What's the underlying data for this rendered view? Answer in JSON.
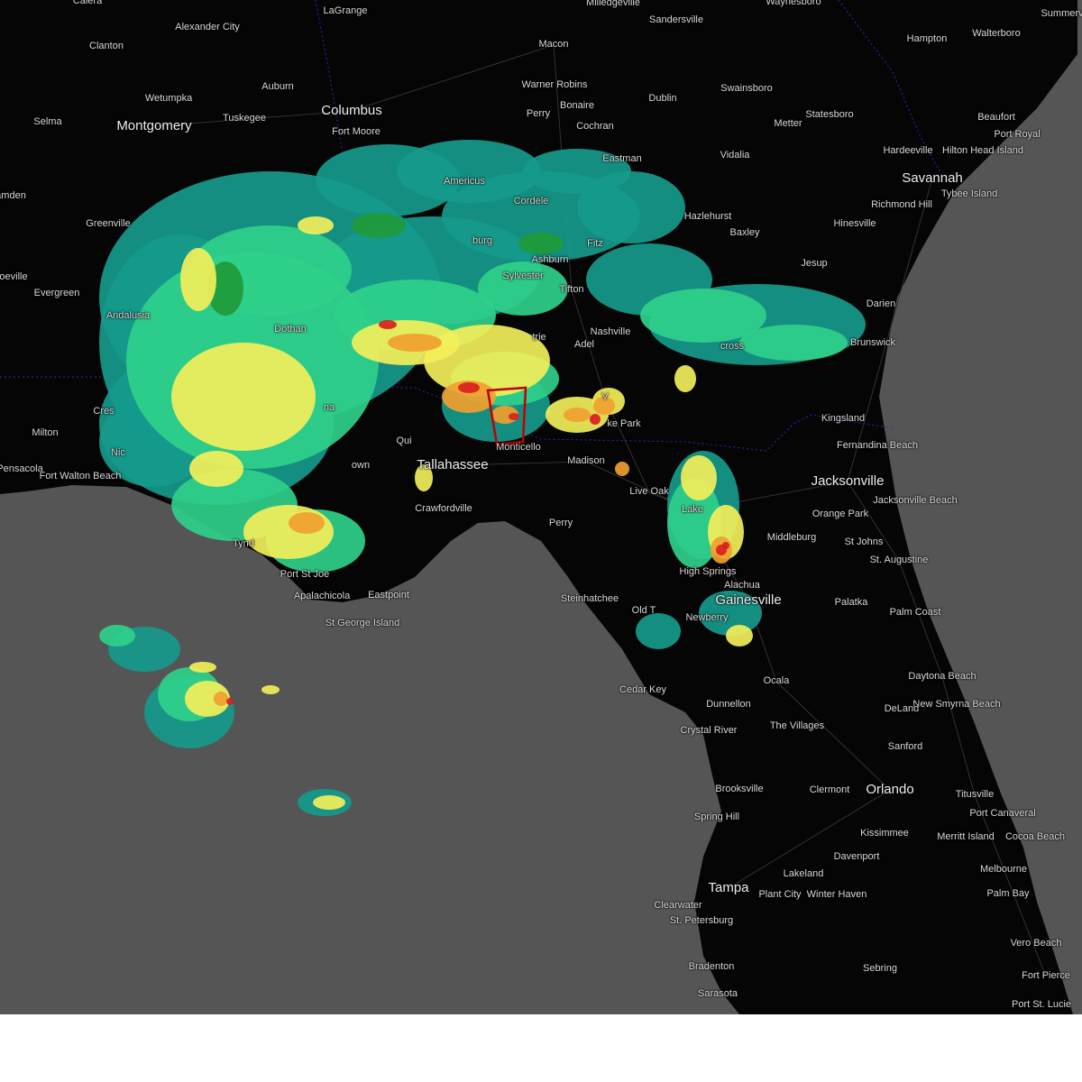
{
  "map": {
    "type": "weather radar",
    "colors": {
      "land": "#050505",
      "water": "#555555",
      "radar_light": "#159a8c",
      "radar_green": "#2fd08a",
      "radar_darkgreen": "#1f9a3a",
      "radar_yellow": "#f2ef5a",
      "radar_orange": "#f0a030",
      "radar_red": "#d82020",
      "warning_polygon": "#c00000",
      "state_border": "#2a2acc"
    }
  },
  "cities": [
    {
      "name": "Calera"
    },
    {
      "name": "LaGrange"
    },
    {
      "name": "Milledgeville"
    },
    {
      "name": "Waynesboro"
    },
    {
      "name": "Summerv"
    },
    {
      "name": "Sandersville"
    },
    {
      "name": "Alexander City"
    },
    {
      "name": "Hampton"
    },
    {
      "name": "Walterboro"
    },
    {
      "name": "Clanton"
    },
    {
      "name": "Macon"
    },
    {
      "name": "Wetumpka"
    },
    {
      "name": "Auburn"
    },
    {
      "name": "Warner Robins"
    },
    {
      "name": "Bonaire"
    },
    {
      "name": "Perry"
    },
    {
      "name": "Dublin"
    },
    {
      "name": "Swainsboro"
    },
    {
      "name": "Beaufort"
    },
    {
      "name": "Port Royal"
    },
    {
      "name": "Selma"
    },
    {
      "name": "Montgomery"
    },
    {
      "name": "Tuskegee"
    },
    {
      "name": "Columbus"
    },
    {
      "name": "Fort Moore"
    },
    {
      "name": "Cochran"
    },
    {
      "name": "Metter"
    },
    {
      "name": "Statesboro"
    },
    {
      "name": "Hardeeville"
    },
    {
      "name": "Hilton Head Island"
    },
    {
      "name": "Eastman"
    },
    {
      "name": "Vidalia"
    },
    {
      "name": "Savannah"
    },
    {
      "name": "Americus"
    },
    {
      "name": "Cordele"
    },
    {
      "name": "Richmond Hill"
    },
    {
      "name": "Tybee Island"
    },
    {
      "name": "amden"
    },
    {
      "name": "Greenville"
    },
    {
      "name": "Hazlehurst"
    },
    {
      "name": "Baxley"
    },
    {
      "name": "Hinesville"
    },
    {
      "name": "Fitz"
    },
    {
      "name": "burg"
    },
    {
      "name": "Ashburn"
    },
    {
      "name": "Jesup"
    },
    {
      "name": "oeville"
    },
    {
      "name": "Sylvester"
    },
    {
      "name": "Evergreen"
    },
    {
      "name": "Tifton"
    },
    {
      "name": "Darien"
    },
    {
      "name": "Andalusia"
    },
    {
      "name": "Dothan"
    },
    {
      "name": "trie"
    },
    {
      "name": "Nashville"
    },
    {
      "name": "Adel"
    },
    {
      "name": "cross"
    },
    {
      "name": "Brunswick"
    },
    {
      "name": "V"
    },
    {
      "name": "ke Park"
    },
    {
      "name": "Kingsland"
    },
    {
      "name": "Cres"
    },
    {
      "name": "Milton"
    },
    {
      "name": "Monticello"
    },
    {
      "name": "Fernandina Beach"
    },
    {
      "name": "Nic"
    },
    {
      "name": "Pensacola"
    },
    {
      "name": "Fort Walton Beach"
    },
    {
      "name": "Tallahassee"
    },
    {
      "name": "Madison"
    },
    {
      "name": "Qui"
    },
    {
      "name": "Live Oak"
    },
    {
      "name": "Jacksonville"
    },
    {
      "name": "Jacksonville Beach"
    },
    {
      "name": "Crawfordville"
    },
    {
      "name": "Lake"
    },
    {
      "name": "Orange Park"
    },
    {
      "name": "Perry"
    },
    {
      "name": "Middleburg"
    },
    {
      "name": "St Johns"
    },
    {
      "name": "Tynd"
    },
    {
      "name": "St. Augustine"
    },
    {
      "name": "Port St Joe"
    },
    {
      "name": "High Springs"
    },
    {
      "name": "Alachua"
    },
    {
      "name": "Apalachicola"
    },
    {
      "name": "Eastpoint"
    },
    {
      "name": "Gainesville"
    },
    {
      "name": "Steinhatchee"
    },
    {
      "name": "Palatka"
    },
    {
      "name": "Old T"
    },
    {
      "name": "Newberry"
    },
    {
      "name": "Palm Coast"
    },
    {
      "name": "St George Island"
    },
    {
      "name": "Daytona Beach"
    },
    {
      "name": "Ocala"
    },
    {
      "name": "Cedar Key"
    },
    {
      "name": "New Smyrna Beach"
    },
    {
      "name": "DeLand"
    },
    {
      "name": "Dunnellon"
    },
    {
      "name": "Crystal River"
    },
    {
      "name": "The Villages"
    },
    {
      "name": "Sanford"
    },
    {
      "name": "Orlando"
    },
    {
      "name": "Titusville"
    },
    {
      "name": "Brooksville"
    },
    {
      "name": "Clermont"
    },
    {
      "name": "Port Canaveral"
    },
    {
      "name": "Spring Hill"
    },
    {
      "name": "Kissimmee"
    },
    {
      "name": "Merritt Island"
    },
    {
      "name": "Cocoa Beach"
    },
    {
      "name": "Davenport"
    },
    {
      "name": "Melbourne"
    },
    {
      "name": "Lakeland"
    },
    {
      "name": "Tampa"
    },
    {
      "name": "Clearwater"
    },
    {
      "name": "Plant City"
    },
    {
      "name": "Winter Haven"
    },
    {
      "name": "Palm Bay"
    },
    {
      "name": "St. Petersburg"
    },
    {
      "name": "Vero Beach"
    },
    {
      "name": "Bradenton"
    },
    {
      "name": "Sebring"
    },
    {
      "name": "Fort Pierce"
    },
    {
      "name": "Sarasota"
    },
    {
      "name": "Port St. Lucie"
    },
    {
      "name": "own"
    },
    {
      "name": "na"
    }
  ]
}
